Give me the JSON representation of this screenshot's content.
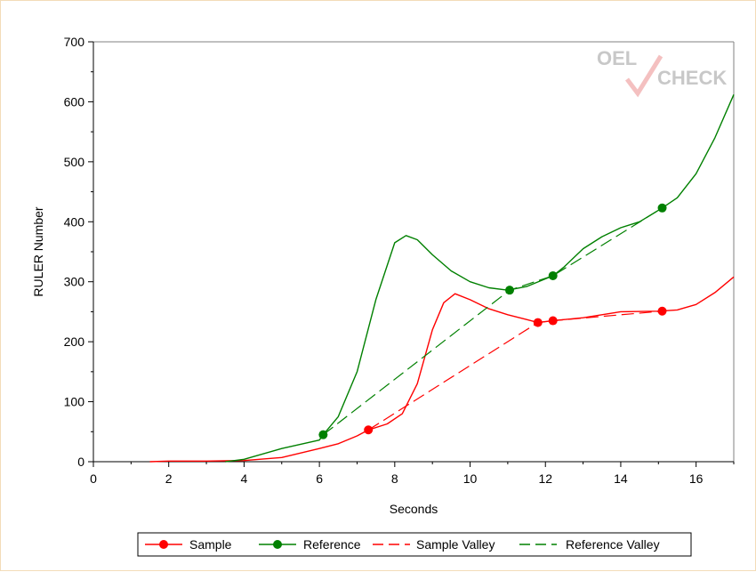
{
  "logo": {
    "part1": "OEL",
    "part2": "CHECK"
  },
  "chart_data": {
    "type": "line",
    "xlabel": "Seconds",
    "ylabel": "RULER Number",
    "xlim": [
      0,
      17
    ],
    "ylim": [
      0,
      700
    ],
    "xticks": [
      0,
      2,
      4,
      6,
      8,
      10,
      12,
      14,
      16
    ],
    "yticks": [
      0,
      100,
      200,
      300,
      400,
      500,
      600,
      700
    ],
    "grid": false,
    "legend": "bottom",
    "series": [
      {
        "name": "Sample",
        "style": "line",
        "color": "#ff0000",
        "points": [
          [
            1.5,
            0
          ],
          [
            2,
            1
          ],
          [
            3,
            1
          ],
          [
            4,
            2
          ],
          [
            5,
            7
          ],
          [
            6,
            22
          ],
          [
            6.5,
            30
          ],
          [
            7,
            43
          ],
          [
            7.3,
            53
          ],
          [
            7.8,
            63
          ],
          [
            8.2,
            80
          ],
          [
            8.6,
            130
          ],
          [
            9,
            220
          ],
          [
            9.3,
            265
          ],
          [
            9.6,
            280
          ],
          [
            10,
            270
          ],
          [
            10.5,
            255
          ],
          [
            11,
            245
          ],
          [
            11.5,
            237
          ],
          [
            11.8,
            232
          ],
          [
            12.2,
            235
          ],
          [
            13,
            240
          ],
          [
            14,
            250
          ],
          [
            15,
            251
          ],
          [
            15.5,
            253
          ],
          [
            16,
            262
          ],
          [
            16.5,
            282
          ],
          [
            17,
            308
          ]
        ],
        "markers": [
          [
            7.3,
            53
          ],
          [
            11.8,
            232
          ],
          [
            12.2,
            235
          ],
          [
            15.1,
            251
          ]
        ]
      },
      {
        "name": "Reference",
        "style": "line",
        "color": "#008000",
        "points": [
          [
            3.5,
            0
          ],
          [
            4,
            4
          ],
          [
            5,
            22
          ],
          [
            6,
            36
          ],
          [
            6.1,
            45
          ],
          [
            6.5,
            75
          ],
          [
            7,
            150
          ],
          [
            7.5,
            270
          ],
          [
            8,
            365
          ],
          [
            8.3,
            377
          ],
          [
            8.6,
            370
          ],
          [
            9,
            345
          ],
          [
            9.5,
            318
          ],
          [
            10,
            300
          ],
          [
            10.5,
            290
          ],
          [
            11,
            286
          ],
          [
            11.5,
            292
          ],
          [
            12.2,
            310
          ],
          [
            12.5,
            325
          ],
          [
            13,
            355
          ],
          [
            13.5,
            375
          ],
          [
            14,
            390
          ],
          [
            14.5,
            400
          ],
          [
            15.1,
            423
          ],
          [
            15.5,
            440
          ],
          [
            16,
            480
          ],
          [
            16.5,
            540
          ],
          [
            17,
            612
          ]
        ],
        "markers": [
          [
            6.1,
            45
          ],
          [
            11.05,
            286
          ],
          [
            12.2,
            310
          ],
          [
            15.1,
            423
          ]
        ]
      },
      {
        "name": "Sample Valley",
        "style": "dashed",
        "color": "#ff0000",
        "points": [
          [
            7.3,
            53
          ],
          [
            11.8,
            232
          ],
          [
            12.2,
            235
          ],
          [
            15.1,
            251
          ]
        ]
      },
      {
        "name": "Reference Valley",
        "style": "dashed",
        "color": "#008000",
        "points": [
          [
            6.1,
            45
          ],
          [
            11.05,
            286
          ],
          [
            12.2,
            310
          ],
          [
            15.1,
            423
          ]
        ]
      }
    ]
  }
}
